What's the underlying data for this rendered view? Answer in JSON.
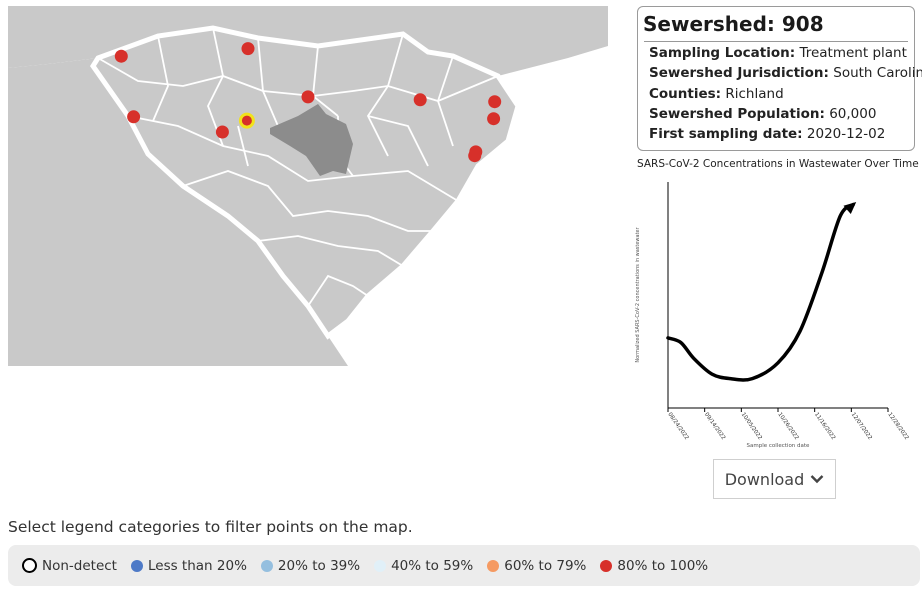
{
  "card": {
    "title": "Sewershed: 908",
    "rows": [
      {
        "label": "Sampling Location:",
        "value": "Treatment plant"
      },
      {
        "label": "Sewershed Jurisdiction:",
        "value": "South Carolina"
      },
      {
        "label": "Counties:",
        "value": "Richland"
      },
      {
        "label": "Sewershed Population:",
        "value": "60,000"
      },
      {
        "label": "First sampling date:",
        "value": "2020-12-02"
      }
    ]
  },
  "chart_data": {
    "type": "line",
    "title": "SARS-CoV-2 Concentrations in Wastewater Over Time",
    "xlabel": "Sample collection date",
    "ylabel": "Normalized SARS-CoV-2 concentrations in wastewater",
    "x_ticks": [
      "08/24/2022",
      "09/14/2022",
      "10/05/2022",
      "10/26/2022",
      "11/16/2022",
      "12/07/2022",
      "12/28/2022"
    ],
    "series": [
      {
        "values": [
          {
            "x": 0.0,
            "y": 0.31
          },
          {
            "x": 0.35,
            "y": 0.29
          },
          {
            "x": 0.7,
            "y": 0.22
          },
          {
            "x": 1.2,
            "y": 0.15
          },
          {
            "x": 1.7,
            "y": 0.13
          },
          {
            "x": 2.3,
            "y": 0.13
          },
          {
            "x": 3.0,
            "y": 0.2
          },
          {
            "x": 3.6,
            "y": 0.34
          },
          {
            "x": 4.2,
            "y": 0.6
          },
          {
            "x": 4.7,
            "y": 0.85
          },
          {
            "x": 5.05,
            "y": 0.9
          }
        ]
      }
    ],
    "xlim": [
      0,
      6
    ],
    "ylim": [
      0,
      1
    ],
    "arrow_end": true
  },
  "download": {
    "label": "Download"
  },
  "instructions": "Select legend categories to filter points on the map.",
  "legend": [
    {
      "label": "Non-detect",
      "color": "#000000",
      "style": "ring"
    },
    {
      "label": "Less than 20%",
      "color": "#4e7ac7",
      "style": "dot"
    },
    {
      "label": "20% to 39%",
      "color": "#95bfdf",
      "style": "dot"
    },
    {
      "label": "40% to 59%",
      "color": "#e1f0f8",
      "style": "dot"
    },
    {
      "label": "60% to 79%",
      "color": "#f59a62",
      "style": "dot"
    },
    {
      "label": "80% to 100%",
      "color": "#d7302a",
      "style": "dot"
    }
  ],
  "map": {
    "region": "South Carolina",
    "land_color": "#c9c9c9",
    "border_color": "#ffffff",
    "selected_sewershed_color": "#8c8c8c",
    "point_color": "#d7302a",
    "selected_point_color": "#f1e21c",
    "points": [
      {
        "lon": -82.58,
        "lat": 35.07
      },
      {
        "lon": -81.44,
        "lat": 35.15
      },
      {
        "lon": -82.47,
        "lat": 34.43
      },
      {
        "lon": -81.67,
        "lat": 34.27
      },
      {
        "lon": -80.9,
        "lat": 34.64
      },
      {
        "lon": -79.89,
        "lat": 34.61
      },
      {
        "lon": -79.22,
        "lat": 34.59
      },
      {
        "lon": -79.23,
        "lat": 34.41
      },
      {
        "lon": -79.39,
        "lat": 34.06
      },
      {
        "lon": -79.4,
        "lat": 34.02
      }
    ],
    "selected_point": {
      "lon": -81.45,
      "lat": 34.39
    }
  }
}
